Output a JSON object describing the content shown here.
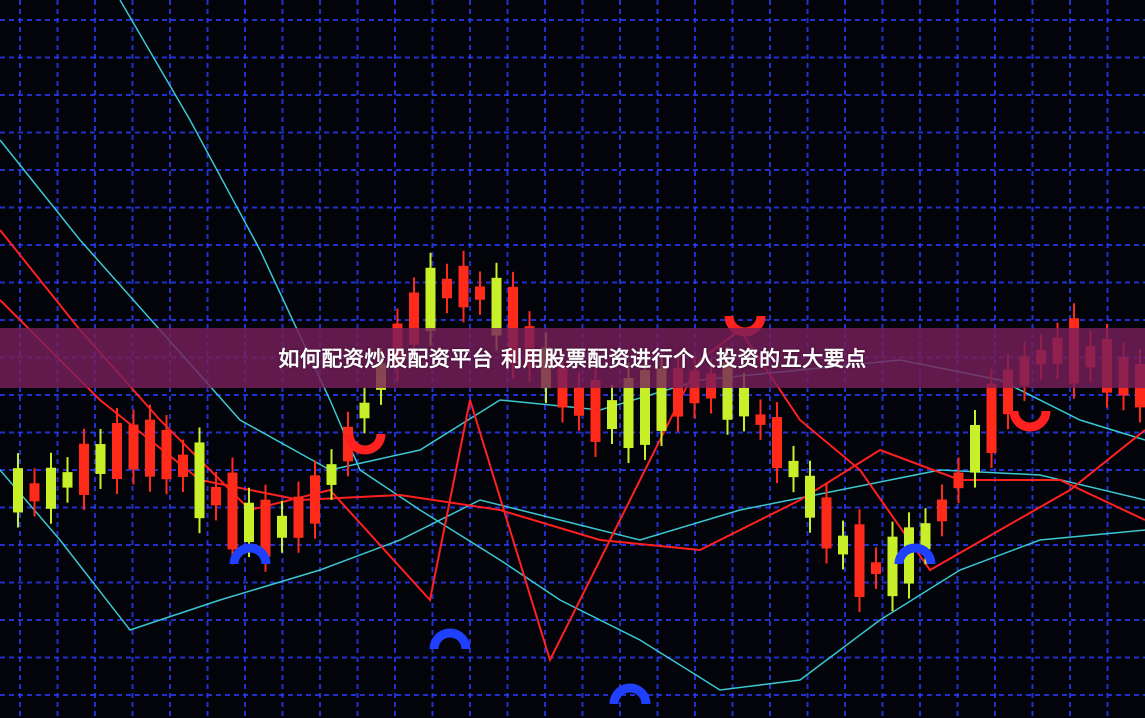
{
  "banner": {
    "title": "如何配资炒股配资平台 利用股票配资进行个人投资的五大要点"
  },
  "colors": {
    "background": "#03030a",
    "grid": "#2a3cff",
    "banner": "#781e5a",
    "candle_up": "#c8f028",
    "candle_down": "#ff2a1a",
    "line_cyan": "#3cc8d0",
    "line_red": "#ff2020",
    "marker_blue": "#2040ff"
  }
}
